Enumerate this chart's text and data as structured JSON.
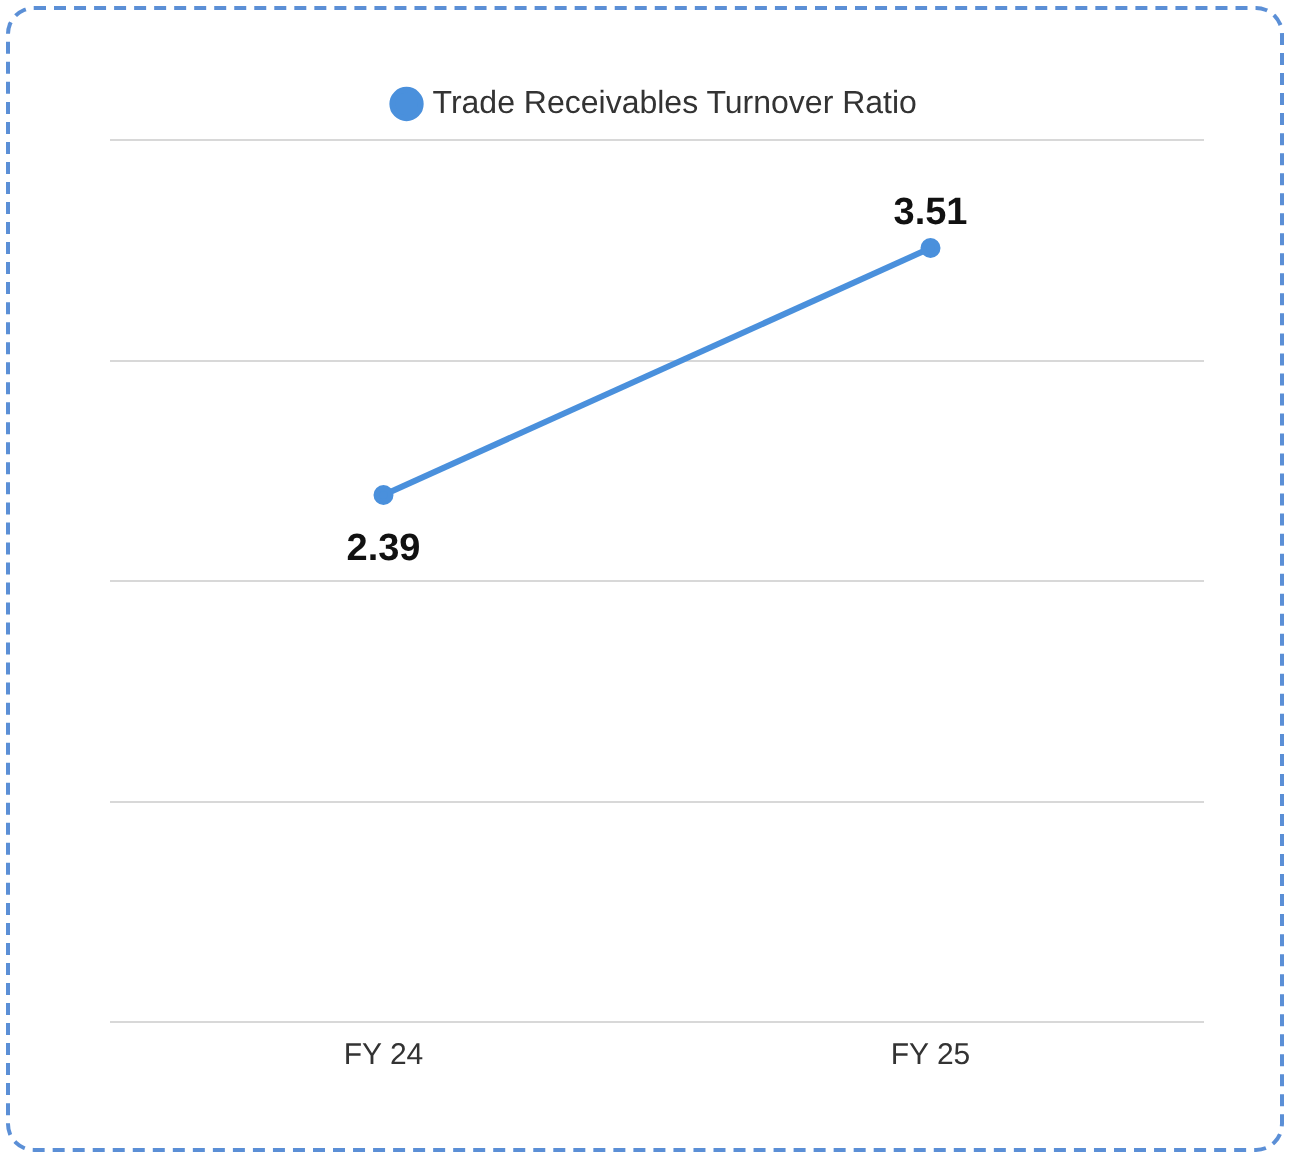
{
  "chart_data": {
    "type": "line",
    "categories": [
      "FY 24",
      "FY 25"
    ],
    "series": [
      {
        "name": "Trade Receivables Turnover Ratio",
        "color": "#4a90dc",
        "values": [
          2.39,
          3.51
        ]
      }
    ],
    "ylim": [
      0,
      4
    ],
    "yticks": [
      {
        "value": 0,
        "label": null
      },
      {
        "value": 1,
        "label": null
      },
      {
        "value": 2,
        "label": null
      },
      {
        "value": 3,
        "label": null
      },
      {
        "value": 4,
        "label": null
      }
    ],
    "tick_labels": "x",
    "grid": "y",
    "legend": "top",
    "marker": "circle",
    "line_style": "solid",
    "data_labels": true
  }
}
